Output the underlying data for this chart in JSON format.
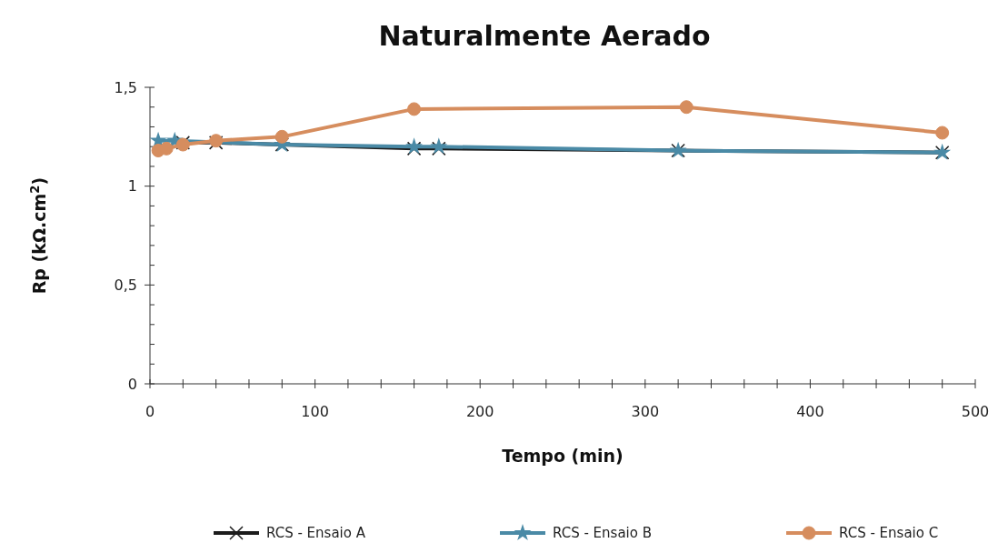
{
  "chart_data": {
    "type": "line",
    "title": "Naturalmente Aerado",
    "xlabel": "Tempo (min)",
    "ylabel": "Rp (kΩ.cm$^{2}$)",
    "xlim": [
      0,
      500
    ],
    "ylim": [
      0,
      1.5
    ],
    "xticks": [
      0,
      {
        "value": 20,
        "label": null
      },
      {
        "value": 40,
        "label": null
      },
      {
        "value": 60,
        "label": null
      },
      {
        "value": 80,
        "label": null
      },
      100,
      {
        "value": 120,
        "label": null
      },
      {
        "value": 140,
        "label": null
      },
      {
        "value": 160,
        "label": null
      },
      {
        "value": 180,
        "label": null
      },
      200,
      {
        "value": 220,
        "label": null
      },
      {
        "value": 240,
        "label": null
      },
      {
        "value": 260,
        "label": null
      },
      {
        "value": 280,
        "label": null
      },
      300,
      {
        "value": 320,
        "label": null
      },
      {
        "value": 340,
        "label": null
      },
      {
        "value": 360,
        "label": null
      },
      {
        "value": 380,
        "label": null
      },
      400,
      {
        "value": 420,
        "label": null
      },
      {
        "value": 440,
        "label": null
      },
      {
        "value": 460,
        "label": null
      },
      {
        "value": 480,
        "label": null
      },
      500
    ],
    "yticks": [
      0,
      {
        "value": 0.1,
        "label": null
      },
      {
        "value": 0.2,
        "label": null
      },
      {
        "value": 0.3,
        "label": null
      },
      {
        "value": 0.4,
        "label": null
      },
      {
        "value": 0.5,
        "label": "0,5"
      },
      {
        "value": 0.6,
        "label": null
      },
      {
        "value": 0.7,
        "label": null
      },
      {
        "value": 0.8,
        "label": null
      },
      {
        "value": 0.9,
        "label": null
      },
      1,
      {
        "value": 1.1,
        "label": null
      },
      {
        "value": 1.2,
        "label": null
      },
      {
        "value": 1.3,
        "label": null
      },
      {
        "value": 1.4,
        "label": null
      },
      {
        "value": 1.5,
        "label": "1,5"
      }
    ],
    "grid": false,
    "legend": "bottom",
    "line_style": "solid",
    "series": [
      {
        "name": "RCS - Ensaio A",
        "color": "#1c1c1c",
        "marker": "cross",
        "x": [
          20,
          40,
          80,
          160,
          175,
          320,
          480
        ],
        "values": [
          1.22,
          1.22,
          1.21,
          1.19,
          1.19,
          1.18,
          1.17
        ]
      },
      {
        "name": "RCS - Ensaio B",
        "color": "#4a8aa6",
        "marker": "star",
        "x": [
          5,
          15,
          80,
          160,
          175,
          320,
          480
        ],
        "values": [
          1.23,
          1.23,
          1.21,
          1.2,
          1.2,
          1.18,
          1.17
        ]
      },
      {
        "name": "RCS - Ensaio C",
        "color": "#d68d5e",
        "marker": "circle",
        "x": [
          5,
          10,
          20,
          40,
          80,
          160,
          325,
          480
        ],
        "values": [
          1.18,
          1.19,
          1.21,
          1.23,
          1.25,
          1.39,
          1.4,
          1.27
        ]
      }
    ]
  }
}
